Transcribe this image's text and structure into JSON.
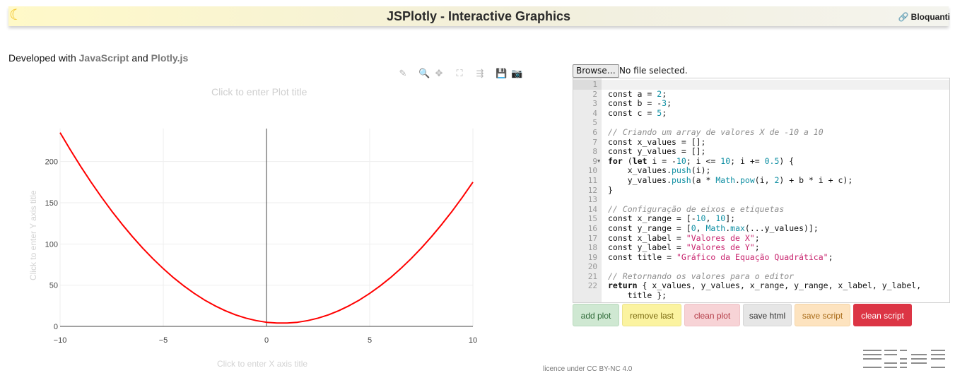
{
  "header": {
    "title": "JSPlotly - Interactive Graphics",
    "brand_link": "Bloquanti",
    "moon_icon": "moon-icon",
    "link_icon": "link-icon"
  },
  "developed_with": {
    "prefix": "Developed with",
    "tech1": "JavaScript",
    "conjunction": "and",
    "tech2": "Plotly.js"
  },
  "plot": {
    "title_placeholder": "Click to enter Plot title",
    "xaxis_title_placeholder": "Click to enter X axis title",
    "yaxis_title_placeholder": "Click to enter Y axis title",
    "modebar": [
      {
        "name": "pencil-icon",
        "glyph": "✎",
        "label": "Edit in Chart Studio"
      },
      {
        "name": "zoom-icon",
        "glyph": "🔍",
        "label": "Zoom"
      },
      {
        "name": "pan-icon",
        "glyph": "✥",
        "label": "Pan"
      },
      {
        "name": "autoscale-icon",
        "glyph": "⛶",
        "label": "Autoscale"
      },
      {
        "name": "hover-compare-icon",
        "glyph": "⇶",
        "label": "Compare data on hover"
      },
      {
        "name": "save-icon",
        "glyph": "💾",
        "label": "Save"
      },
      {
        "name": "camera-icon",
        "glyph": "📷",
        "label": "Download plot as png"
      }
    ]
  },
  "chart_data": {
    "type": "line",
    "title": "",
    "xlabel": "",
    "ylabel": "",
    "xlim": [
      -10,
      10
    ],
    "ylim": [
      0,
      240
    ],
    "x_ticks": [
      -10,
      -5,
      0,
      5,
      10
    ],
    "y_ticks": [
      0,
      50,
      100,
      150,
      200
    ],
    "grid": true,
    "series": [
      {
        "color": "#ff0000",
        "x": [
          -10,
          -9.5,
          -9,
          -8.5,
          -8,
          -7.5,
          -7,
          -6.5,
          -6,
          -5.5,
          -5,
          -4.5,
          -4,
          -3.5,
          -3,
          -2.5,
          -2,
          -1.5,
          -1,
          -0.5,
          0,
          0.5,
          1,
          1.5,
          2,
          2.5,
          3,
          3.5,
          4,
          4.5,
          5,
          5.5,
          6,
          6.5,
          7,
          7.5,
          8,
          8.5,
          9,
          9.5,
          10
        ],
        "y": [
          235,
          214,
          194,
          175,
          157,
          140,
          124,
          109,
          95,
          82,
          70,
          59,
          49,
          40,
          32,
          25,
          19,
          14,
          10,
          7,
          5,
          4,
          4,
          5,
          7,
          10,
          14,
          19,
          25,
          32,
          40,
          49,
          59,
          70,
          82,
          95,
          109,
          124,
          140,
          157,
          175
        ]
      }
    ]
  },
  "file_input": {
    "button_label": "Browse…",
    "status": "No file selected."
  },
  "editor": {
    "lines": [
      "",
      "const a = 2;",
      "const b = -3;",
      "const c = 5;",
      "",
      "// Criando um array de valores X de -10 a 10",
      "const x_values = [];",
      "const y_values = [];",
      "for (let i = -10; i <= 10; i += 0.5) {",
      "    x_values.push(i);",
      "    y_values.push(a * Math.pow(i, 2) + b * i + c);",
      "}",
      "",
      "// Configuração de eixos e etiquetas",
      "const x_range = [-10, 10];",
      "const y_range = [0, Math.max(...y_values)];",
      "const x_label = \"Valores de X\";",
      "const y_label = \"Valores de Y\";",
      "const title = \"Gráfico da Equação Quadrática\";",
      "",
      "// Retornando os valores para o editor",
      "return { x_values, y_values, x_range, y_range, x_label, y_label,",
      "    title };"
    ],
    "line_numbers": [
      "1",
      "2",
      "3",
      "4",
      "5",
      "6",
      "7",
      "8",
      "9",
      "10",
      "11",
      "12",
      "13",
      "14",
      "15",
      "16",
      "17",
      "18",
      "19",
      "20",
      "21",
      "22",
      ""
    ]
  },
  "buttons": [
    {
      "name": "add-plot-button",
      "label": "add plot",
      "bg": "#cfe8d2",
      "fg": "#2f6b38",
      "border": "#b9d9bd"
    },
    {
      "name": "remove-last-button",
      "label": "remove last",
      "bg": "#fbf3a0",
      "fg": "#7a6a10",
      "border": "#ece38c"
    },
    {
      "name": "clean-plot-button",
      "label": "clean plot",
      "bg": "#f7d3d6",
      "fg": "#b23a45",
      "border": "#efc2c6"
    },
    {
      "name": "save-html-button",
      "label": "save html",
      "bg": "#e6e6e6",
      "fg": "#333333",
      "border": "#d6d6d6"
    },
    {
      "name": "save-script-button",
      "label": "save script",
      "bg": "#fde3bf",
      "fg": "#a86a16",
      "border": "#f4d3a6"
    },
    {
      "name": "clean-script-button",
      "label": "clean script",
      "bg": "#dc3545",
      "fg": "#ffffff",
      "border": "#dc3545"
    }
  ],
  "footer": {
    "licence": "licence under CC BY-NC 4.0"
  }
}
